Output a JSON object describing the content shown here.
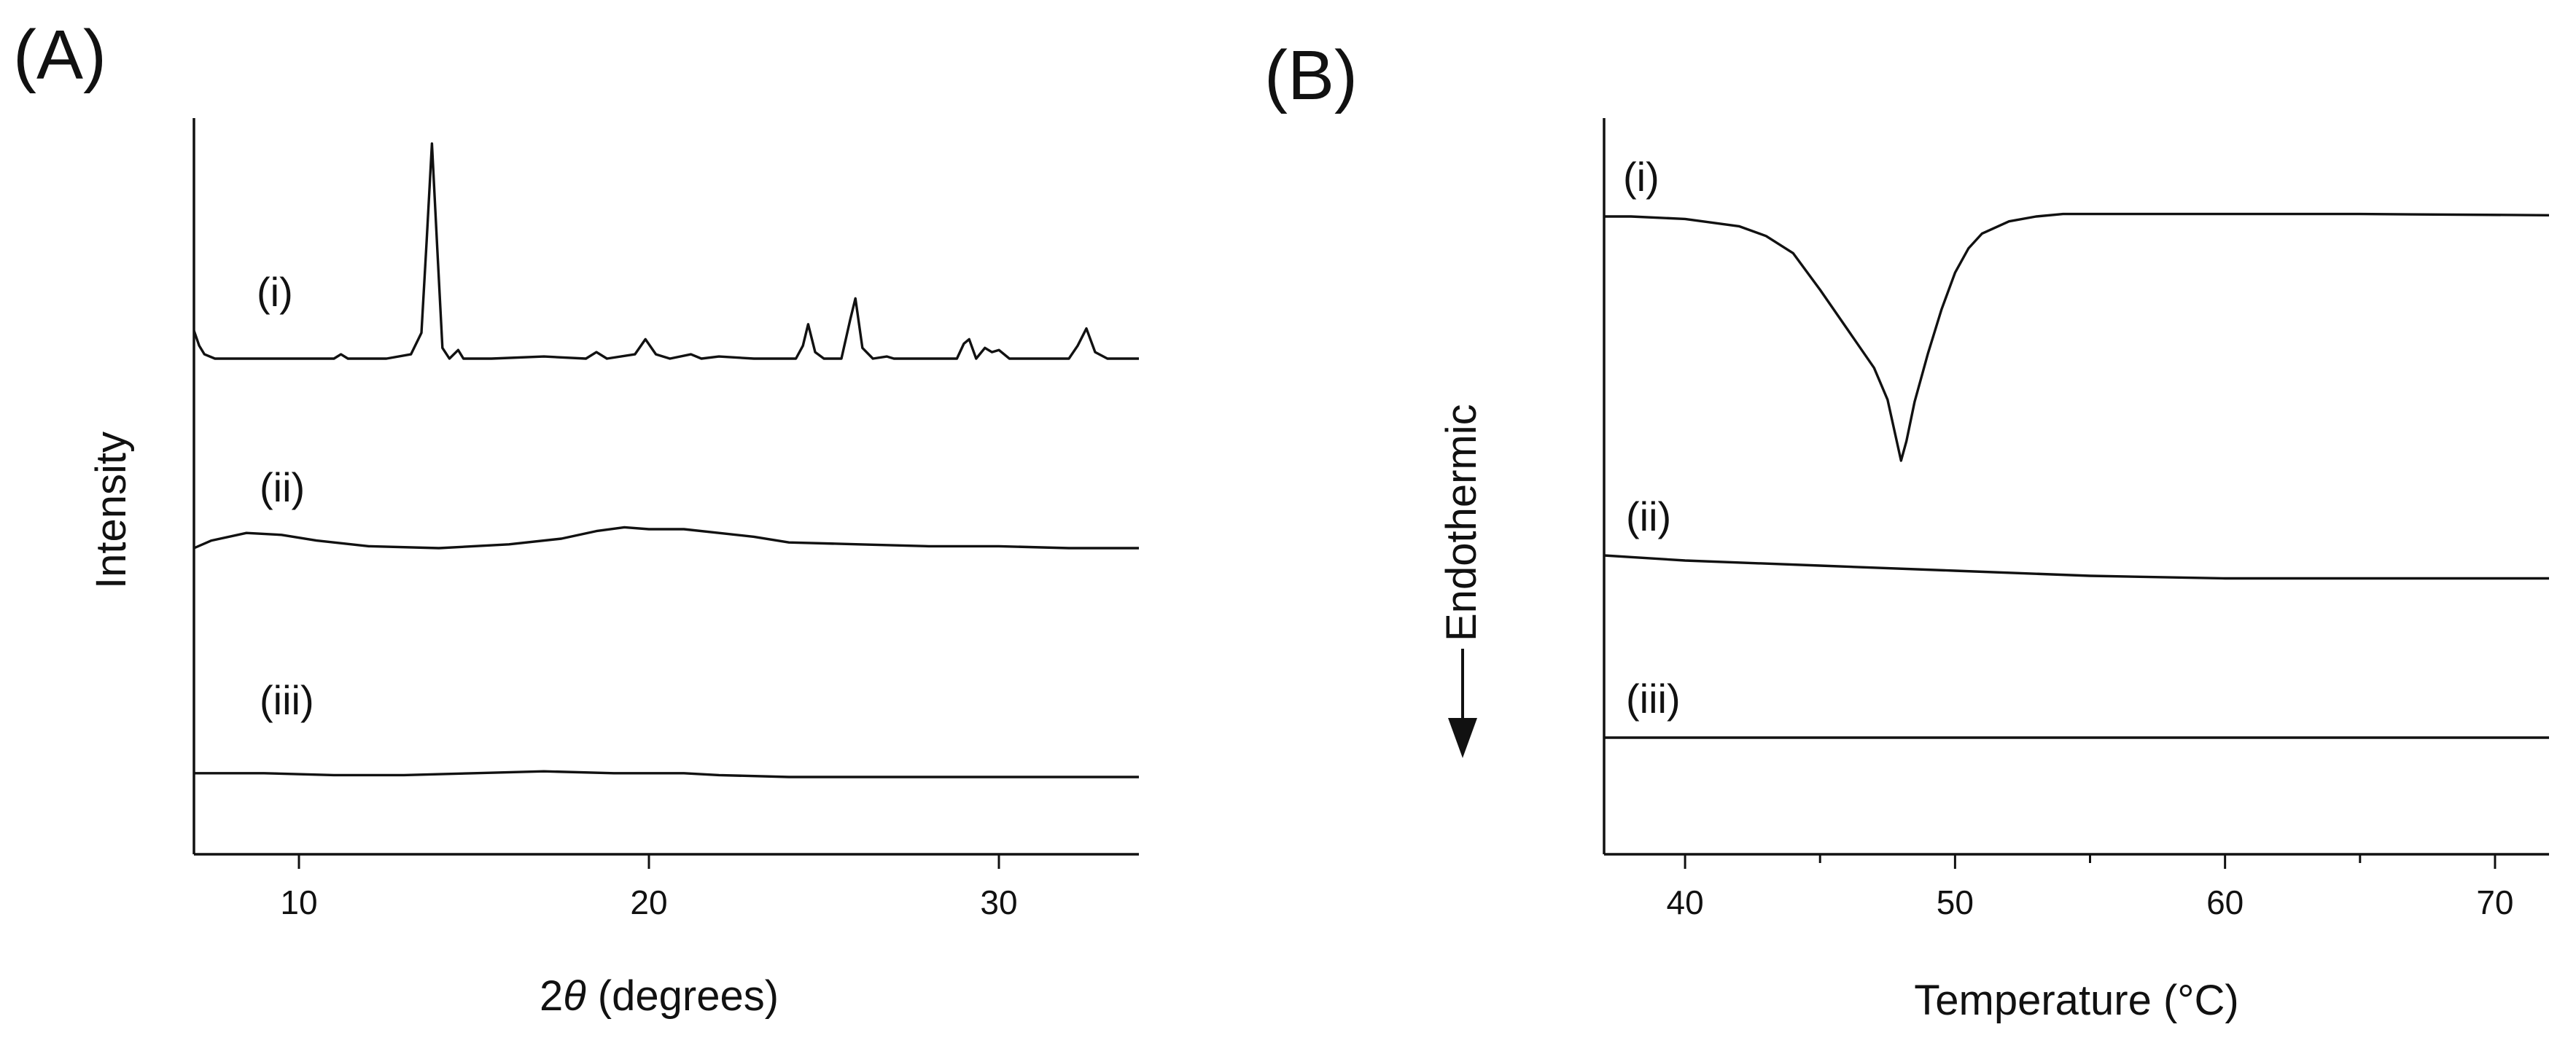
{
  "chart_data": [
    {
      "type": "line",
      "panel_label": "(A)",
      "xlabel_prefix": "2",
      "xlabel_symbol": "θ",
      "xlabel_suffix": " (degrees)",
      "ylabel": "Intensity",
      "xlim": [
        7,
        34
      ],
      "xticks": [
        10,
        20,
        30
      ],
      "xtick_labels": [
        "10",
        "20",
        "30"
      ],
      "y_ticks_shown": false,
      "series": [
        {
          "label": "(i)",
          "x": [
            7,
            7.15,
            7.3,
            7.6,
            9,
            10.5,
            11,
            11.2,
            11.4,
            12.5,
            13.2,
            13.5,
            13.65,
            13.8,
            13.95,
            14.1,
            14.3,
            14.55,
            14.7,
            14.9,
            15.5,
            17,
            18.2,
            18.5,
            18.8,
            19.6,
            19.9,
            20.2,
            20.6,
            21.2,
            21.5,
            22,
            23,
            24.2,
            24.4,
            24.55,
            24.75,
            25,
            25.5,
            25.75,
            25.9,
            26.1,
            26.4,
            26.8,
            27,
            27.6,
            28.8,
            29.0,
            29.15,
            29.35,
            29.6,
            29.8,
            30.0,
            30.3,
            31,
            32,
            32.25,
            32.5,
            32.75,
            33.1,
            34
          ],
          "y": [
            0.13,
            0.06,
            0.02,
            0.0,
            0.0,
            0.0,
            0.0,
            0.02,
            0.0,
            0.0,
            0.02,
            0.12,
            0.55,
            1.0,
            0.52,
            0.05,
            0.0,
            0.04,
            0.0,
            0.0,
            0.0,
            0.01,
            0.0,
            0.03,
            0.0,
            0.02,
            0.09,
            0.02,
            0.0,
            0.02,
            0.0,
            0.01,
            0.0,
            0.0,
            0.06,
            0.16,
            0.03,
            0.0,
            0.0,
            0.18,
            0.28,
            0.05,
            0.0,
            0.01,
            0.0,
            0.0,
            0.0,
            0.07,
            0.09,
            0.0,
            0.05,
            0.03,
            0.04,
            0.0,
            0.0,
            0.0,
            0.06,
            0.14,
            0.03,
            0.0,
            0.0
          ]
        },
        {
          "label": "(ii)",
          "x": [
            7,
            7.5,
            8.5,
            9.5,
            10.5,
            12,
            14,
            16,
            17.5,
            18.5,
            19.3,
            20,
            21,
            22,
            23,
            24,
            26,
            28,
            30,
            32,
            34
          ],
          "y": [
            0.0,
            0.04,
            0.08,
            0.07,
            0.04,
            0.01,
            0.0,
            0.02,
            0.05,
            0.09,
            0.11,
            0.1,
            0.1,
            0.08,
            0.06,
            0.03,
            0.02,
            0.01,
            0.01,
            0.0,
            0.0
          ]
        },
        {
          "label": "(iii)",
          "x": [
            7,
            9,
            11,
            13,
            15,
            17,
            19,
            21,
            22,
            24,
            27,
            30,
            34
          ],
          "y": [
            0.02,
            0.02,
            0.01,
            0.01,
            0.02,
            0.03,
            0.02,
            0.02,
            0.01,
            0.0,
            0.0,
            0.0,
            0.0
          ]
        }
      ]
    },
    {
      "type": "line",
      "panel_label": "(B)",
      "xlabel": "Temperature (°C)",
      "ylabel": "Endothermic",
      "ylabel_has_down_arrow": true,
      "xlim": [
        37,
        72
      ],
      "xticks": [
        40,
        50,
        60,
        70
      ],
      "xtick_labels": [
        "40",
        "50",
        "60",
        "70"
      ],
      "minor_xticks": [
        45,
        55,
        65
      ],
      "y_ticks_shown": false,
      "series": [
        {
          "label": "(i)",
          "x": [
            37,
            38,
            40,
            42,
            43,
            44,
            45,
            46,
            47,
            47.5,
            47.8,
            48.0,
            48.2,
            48.5,
            49,
            49.5,
            50,
            50.5,
            51,
            52,
            53,
            54,
            56,
            60,
            65,
            72
          ],
          "y": [
            0.0,
            0.0,
            0.01,
            0.04,
            0.08,
            0.15,
            0.3,
            0.46,
            0.62,
            0.75,
            0.9,
            1.0,
            0.92,
            0.76,
            0.56,
            0.38,
            0.23,
            0.13,
            0.07,
            0.02,
            0.0,
            -0.01,
            -0.01,
            -0.01,
            -0.01,
            -0.005
          ]
        },
        {
          "label": "(ii)",
          "x": [
            37,
            40,
            45,
            50,
            55,
            60,
            65,
            72
          ],
          "y": [
            0.0,
            0.02,
            0.04,
            0.06,
            0.08,
            0.09,
            0.09,
            0.09
          ]
        },
        {
          "label": "(iii)",
          "x": [
            37,
            45,
            55,
            65,
            72
          ],
          "y": [
            0.0,
            0.0,
            0.0,
            0.0,
            0.0
          ]
        }
      ]
    }
  ]
}
